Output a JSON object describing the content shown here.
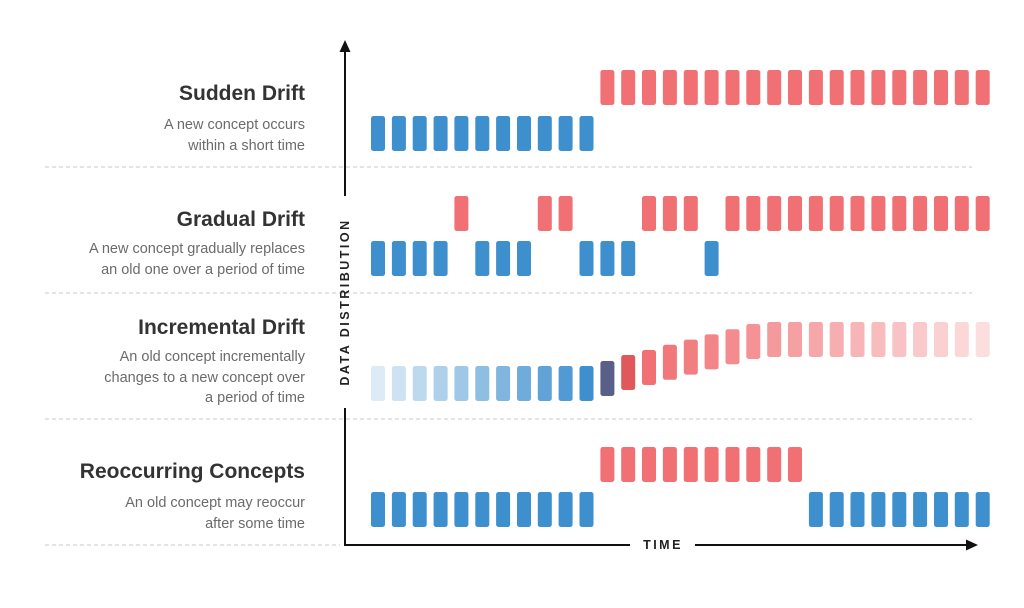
{
  "colors": {
    "old_concept": "#3e8fce",
    "new_concept": "#f07074",
    "transition_old": "#5a5f8a",
    "transition_new": "#e0585c",
    "axis": "#111111",
    "divider": "#c8c8c8"
  },
  "axes": {
    "y_label": "DATA DISTRIBUTION",
    "x_label": "TIME"
  },
  "rows": [
    {
      "title": "Sudden Drift",
      "description": [
        "A new concept occurs",
        "within a short time"
      ],
      "pattern": "OOOOOOOOOOONNNNNNNNNNNNNNNNNNN"
    },
    {
      "title": "Gradual Drift",
      "description": [
        "A new concept gradually replaces",
        "an old one over a period of time"
      ],
      "pattern": "OOOONOOONNOOONNNONNNNNNNNNNNNN"
    },
    {
      "title": "Incremental Drift",
      "description": [
        "An old concept incrementally",
        "changes to a new concept over",
        "a period of time"
      ],
      "pattern": "incremental"
    },
    {
      "title": "Reoccurring Concepts",
      "description": [
        "An old concept may reoccur",
        "after some time"
      ],
      "pattern": "OOOOOOOOOOONNNNNNNNNNOOOOOOOOO"
    }
  ]
}
